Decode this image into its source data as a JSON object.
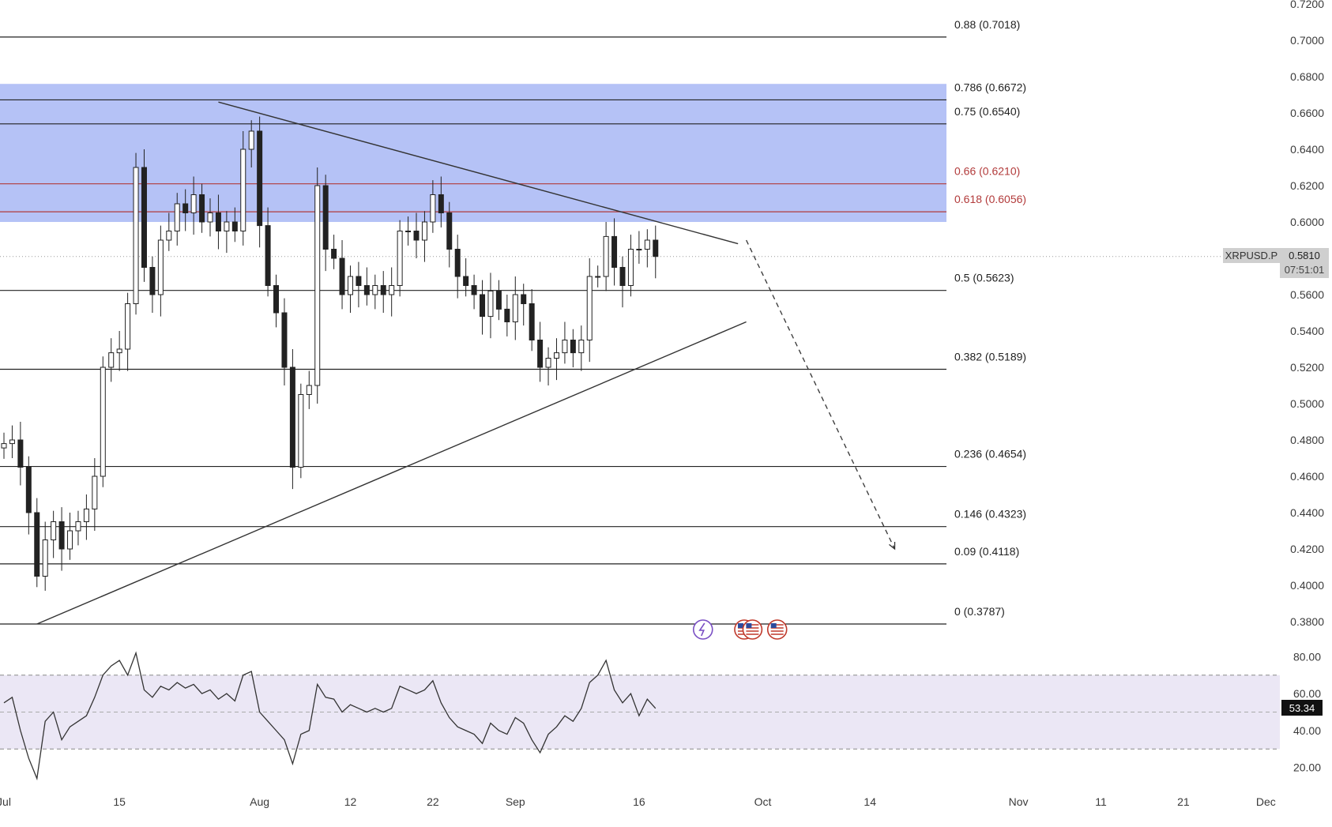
{
  "chart_data": [
    {
      "type": "candlestick",
      "symbol": "XRPUSD.P",
      "last_price": "0.5810",
      "countdown": "07:51:01",
      "yaxis": {
        "range": [
          0.37,
          0.72
        ],
        "ticks": [
          "0.3800",
          "0.4000",
          "0.4200",
          "0.4400",
          "0.4600",
          "0.4800",
          "0.5000",
          "0.5200",
          "0.5400",
          "0.5600",
          "0.5800",
          "0.6000",
          "0.6200",
          "0.6400",
          "0.6600",
          "0.6800",
          "0.7000",
          "0.7200"
        ]
      },
      "xaxis": {
        "ticks": [
          {
            "day": 0,
            "label": "Jul"
          },
          {
            "day": 14,
            "label": "15"
          },
          {
            "day": 31,
            "label": "Aug"
          },
          {
            "day": 42,
            "label": "12"
          },
          {
            "day": 52,
            "label": "22"
          },
          {
            "day": 62,
            "label": "Sep"
          },
          {
            "day": 77,
            "label": "16"
          },
          {
            "day": 92,
            "label": "Oct"
          },
          {
            "day": 105,
            "label": "14"
          },
          {
            "day": 123,
            "label": "Nov"
          },
          {
            "day": 133,
            "label": "11"
          },
          {
            "day": 143,
            "label": "21"
          },
          {
            "day": 153,
            "label": "Dec"
          }
        ]
      },
      "fib_zone": {
        "from": 0.6,
        "to": 0.676,
        "color": "#b1bff5"
      },
      "fib_levels": [
        {
          "value": 0.7018,
          "label": "0.88 (0.7018)",
          "color": "#222222"
        },
        {
          "value": 0.6672,
          "label": "0.786 (0.6672)",
          "color": "#222222"
        },
        {
          "value": 0.654,
          "label": "0.75 (0.6540)",
          "color": "#222222"
        },
        {
          "value": 0.621,
          "label": "0.66 (0.6210)",
          "color": "#b23b3b"
        },
        {
          "value": 0.6056,
          "label": "0.618 (0.6056)",
          "color": "#b23b3b"
        },
        {
          "value": 0.5623,
          "label": "0.5 (0.5623)",
          "color": "#222222"
        },
        {
          "value": 0.5189,
          "label": "0.382 (0.5189)",
          "color": "#222222"
        },
        {
          "value": 0.4654,
          "label": "0.236 (0.4654)",
          "color": "#222222"
        },
        {
          "value": 0.4323,
          "label": "0.146 (0.4323)",
          "color": "#222222"
        },
        {
          "value": 0.4118,
          "label": "0.09 (0.4118)",
          "color": "#222222"
        },
        {
          "value": 0.3787,
          "label": "0 (0.3787)",
          "color": "#222222"
        }
      ],
      "trendlines": [
        {
          "name": "upper",
          "from": {
            "day": 26,
            "price": 0.666
          },
          "to": {
            "day": 89,
            "price": 0.588
          }
        },
        {
          "name": "lower",
          "from": {
            "day": 4,
            "price": 0.3787
          },
          "to": {
            "day": 90,
            "price": 0.545
          }
        }
      ],
      "projection": {
        "from": {
          "day": 90,
          "price": 0.59
        },
        "to": {
          "day": 108,
          "price": 0.42
        }
      },
      "close_series": [
        {
          "day": 0,
          "close": 0.478
        },
        {
          "day": 1,
          "close": 0.48
        },
        {
          "day": 2,
          "close": 0.465
        },
        {
          "day": 3,
          "close": 0.44
        },
        {
          "day": 4,
          "close": 0.405
        },
        {
          "day": 5,
          "close": 0.425
        },
        {
          "day": 6,
          "close": 0.435
        },
        {
          "day": 7,
          "close": 0.42
        },
        {
          "day": 8,
          "close": 0.43
        },
        {
          "day": 9,
          "close": 0.435
        },
        {
          "day": 10,
          "close": 0.442
        },
        {
          "day": 11,
          "close": 0.46
        },
        {
          "day": 12,
          "close": 0.52
        },
        {
          "day": 13,
          "close": 0.528
        },
        {
          "day": 14,
          "close": 0.53
        },
        {
          "day": 15,
          "close": 0.555
        },
        {
          "day": 16,
          "close": 0.63
        },
        {
          "day": 17,
          "close": 0.575
        },
        {
          "day": 18,
          "close": 0.56
        },
        {
          "day": 19,
          "close": 0.59
        },
        {
          "day": 20,
          "close": 0.595
        },
        {
          "day": 21,
          "close": 0.61
        },
        {
          "day": 22,
          "close": 0.605
        },
        {
          "day": 23,
          "close": 0.615
        },
        {
          "day": 24,
          "close": 0.6
        },
        {
          "day": 25,
          "close": 0.605
        },
        {
          "day": 26,
          "close": 0.595
        },
        {
          "day": 27,
          "close": 0.6
        },
        {
          "day": 28,
          "close": 0.595
        },
        {
          "day": 29,
          "close": 0.64
        },
        {
          "day": 30,
          "close": 0.65
        },
        {
          "day": 31,
          "close": 0.598
        },
        {
          "day": 32,
          "close": 0.565
        },
        {
          "day": 33,
          "close": 0.55
        },
        {
          "day": 34,
          "close": 0.52
        },
        {
          "day": 35,
          "close": 0.465
        },
        {
          "day": 36,
          "close": 0.505
        },
        {
          "day": 37,
          "close": 0.51
        },
        {
          "day": 38,
          "close": 0.62
        },
        {
          "day": 39,
          "close": 0.585
        },
        {
          "day": 40,
          "close": 0.58
        },
        {
          "day": 41,
          "close": 0.56
        },
        {
          "day": 42,
          "close": 0.57
        },
        {
          "day": 43,
          "close": 0.565
        },
        {
          "day": 44,
          "close": 0.56
        },
        {
          "day": 45,
          "close": 0.565
        },
        {
          "day": 46,
          "close": 0.56
        },
        {
          "day": 47,
          "close": 0.565
        },
        {
          "day": 48,
          "close": 0.595
        },
        {
          "day": 49,
          "close": 0.595
        },
        {
          "day": 50,
          "close": 0.59
        },
        {
          "day": 51,
          "close": 0.6
        },
        {
          "day": 52,
          "close": 0.615
        },
        {
          "day": 53,
          "close": 0.605
        },
        {
          "day": 54,
          "close": 0.585
        },
        {
          "day": 55,
          "close": 0.57
        },
        {
          "day": 56,
          "close": 0.565
        },
        {
          "day": 57,
          "close": 0.56
        },
        {
          "day": 58,
          "close": 0.548
        },
        {
          "day": 59,
          "close": 0.562
        },
        {
          "day": 60,
          "close": 0.552
        },
        {
          "day": 61,
          "close": 0.545
        },
        {
          "day": 62,
          "close": 0.56
        },
        {
          "day": 63,
          "close": 0.555
        },
        {
          "day": 64,
          "close": 0.535
        },
        {
          "day": 65,
          "close": 0.52
        },
        {
          "day": 66,
          "close": 0.525
        },
        {
          "day": 67,
          "close": 0.528
        },
        {
          "day": 68,
          "close": 0.535
        },
        {
          "day": 69,
          "close": 0.528
        },
        {
          "day": 70,
          "close": 0.535
        },
        {
          "day": 71,
          "close": 0.57
        },
        {
          "day": 72,
          "close": 0.57
        },
        {
          "day": 73,
          "close": 0.592
        },
        {
          "day": 74,
          "close": 0.575
        },
        {
          "day": 75,
          "close": 0.565
        },
        {
          "day": 76,
          "close": 0.585
        },
        {
          "day": 77,
          "close": 0.585
        },
        {
          "day": 78,
          "close": 0.59
        },
        {
          "day": 79,
          "close": 0.581
        }
      ],
      "rsi": {
        "current": "53.34",
        "ticks": [
          "20.00",
          "40.00",
          "60.00",
          "80.00"
        ],
        "range": [
          10,
          90
        ],
        "band": [
          30,
          70
        ],
        "mid": 50,
        "values": [
          {
            "day": 0,
            "value": 55
          },
          {
            "day": 1,
            "value": 58
          },
          {
            "day": 2,
            "value": 40
          },
          {
            "day": 3,
            "value": 25
          },
          {
            "day": 4,
            "value": 14
          },
          {
            "day": 5,
            "value": 45
          },
          {
            "day": 6,
            "value": 50
          },
          {
            "day": 7,
            "value": 35
          },
          {
            "day": 8,
            "value": 42
          },
          {
            "day": 9,
            "value": 45
          },
          {
            "day": 10,
            "value": 48
          },
          {
            "day": 11,
            "value": 58
          },
          {
            "day": 12,
            "value": 70
          },
          {
            "day": 13,
            "value": 75
          },
          {
            "day": 14,
            "value": 78
          },
          {
            "day": 15,
            "value": 70
          },
          {
            "day": 16,
            "value": 82
          },
          {
            "day": 17,
            "value": 62
          },
          {
            "day": 18,
            "value": 58
          },
          {
            "day": 19,
            "value": 64
          },
          {
            "day": 20,
            "value": 62
          },
          {
            "day": 21,
            "value": 66
          },
          {
            "day": 22,
            "value": 63
          },
          {
            "day": 23,
            "value": 65
          },
          {
            "day": 24,
            "value": 60
          },
          {
            "day": 25,
            "value": 62
          },
          {
            "day": 26,
            "value": 57
          },
          {
            "day": 27,
            "value": 60
          },
          {
            "day": 28,
            "value": 56
          },
          {
            "day": 29,
            "value": 70
          },
          {
            "day": 30,
            "value": 72
          },
          {
            "day": 31,
            "value": 50
          },
          {
            "day": 32,
            "value": 45
          },
          {
            "day": 33,
            "value": 40
          },
          {
            "day": 34,
            "value": 35
          },
          {
            "day": 35,
            "value": 22
          },
          {
            "day": 36,
            "value": 38
          },
          {
            "day": 37,
            "value": 40
          },
          {
            "day": 38,
            "value": 65
          },
          {
            "day": 39,
            "value": 58
          },
          {
            "day": 40,
            "value": 57
          },
          {
            "day": 41,
            "value": 50
          },
          {
            "day": 42,
            "value": 54
          },
          {
            "day": 43,
            "value": 52
          },
          {
            "day": 44,
            "value": 50
          },
          {
            "day": 45,
            "value": 52
          },
          {
            "day": 46,
            "value": 50
          },
          {
            "day": 47,
            "value": 52
          },
          {
            "day": 48,
            "value": 64
          },
          {
            "day": 49,
            "value": 62
          },
          {
            "day": 50,
            "value": 60
          },
          {
            "day": 51,
            "value": 62
          },
          {
            "day": 52,
            "value": 67
          },
          {
            "day": 53,
            "value": 55
          },
          {
            "day": 54,
            "value": 47
          },
          {
            "day": 55,
            "value": 42
          },
          {
            "day": 56,
            "value": 40
          },
          {
            "day": 57,
            "value": 38
          },
          {
            "day": 58,
            "value": 33
          },
          {
            "day": 59,
            "value": 44
          },
          {
            "day": 60,
            "value": 40
          },
          {
            "day": 61,
            "value": 38
          },
          {
            "day": 62,
            "value": 47
          },
          {
            "day": 63,
            "value": 44
          },
          {
            "day": 64,
            "value": 35
          },
          {
            "day": 65,
            "value": 28
          },
          {
            "day": 66,
            "value": 38
          },
          {
            "day": 67,
            "value": 42
          },
          {
            "day": 68,
            "value": 48
          },
          {
            "day": 69,
            "value": 45
          },
          {
            "day": 70,
            "value": 52
          },
          {
            "day": 71,
            "value": 66
          },
          {
            "day": 72,
            "value": 70
          },
          {
            "day": 73,
            "value": 78
          },
          {
            "day": 74,
            "value": 62
          },
          {
            "day": 75,
            "value": 55
          },
          {
            "day": 76,
            "value": 60
          },
          {
            "day": 77,
            "value": 48
          },
          {
            "day": 78,
            "value": 57
          },
          {
            "day": 79,
            "value": 52
          }
        ]
      },
      "events": [
        {
          "day": 79,
          "icon": "lightning-event-icon"
        },
        {
          "day": 84,
          "icon": "us-flag-event-icon"
        },
        {
          "day": 85,
          "icon": "us-flag-event-icon"
        },
        {
          "day": 88,
          "icon": "us-flag-event-icon"
        }
      ]
    }
  ],
  "colors": {
    "background": "#ffffff",
    "zone": "#b1bff5",
    "candle": "#222222",
    "rsi_band": "#ebe7f5",
    "red_level": "#b23b3b",
    "axis_text": "#3a3a3a",
    "label_badge": "#cfcfcf",
    "rsi_badge": "#111111"
  }
}
